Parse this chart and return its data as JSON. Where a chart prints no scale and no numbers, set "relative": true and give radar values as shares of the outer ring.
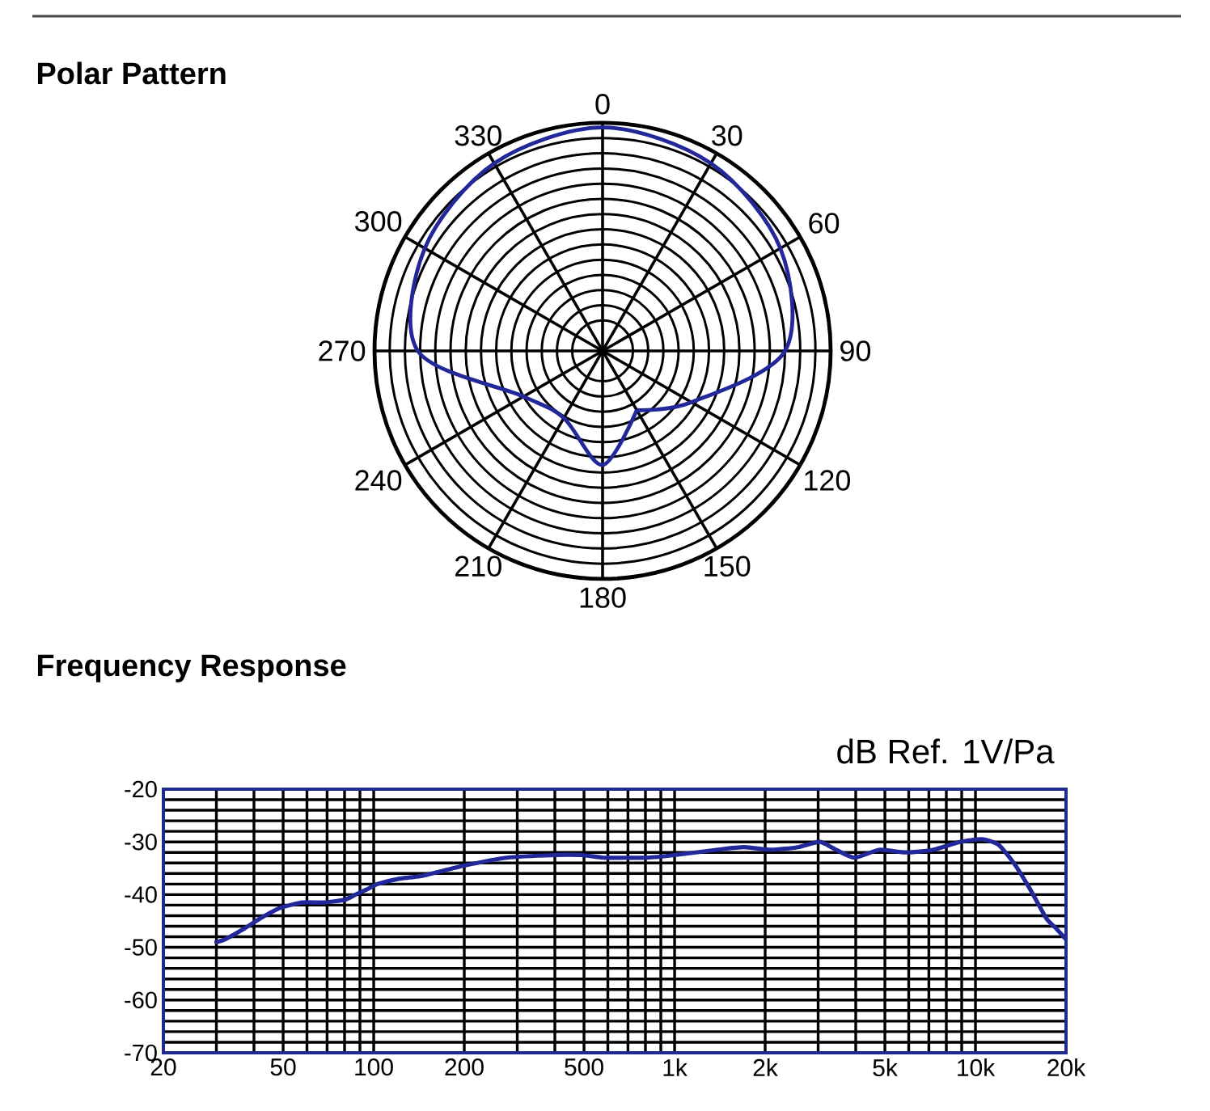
{
  "chart_data": [
    {
      "type": "radar",
      "title": "Polar Pattern",
      "categories": [
        "0",
        "30",
        "60",
        "90",
        "120",
        "150",
        "180",
        "210",
        "240",
        "270",
        "300",
        "330"
      ],
      "relative": true,
      "grid": true,
      "series": [
        {
          "color": "#22279a",
          "values": [
            0.98,
            0.95,
            0.9,
            0.8,
            0.45,
            0.3,
            0.5,
            0.34,
            0.4,
            0.81,
            0.9,
            0.95
          ]
        }
      ]
    },
    {
      "type": "line",
      "title": "Frequency Response",
      "ylabel": "dB Ref. 1V/Pa",
      "log": "x",
      "grid": true,
      "xlim": [
        20,
        20000
      ],
      "xticks": [
        20,
        50,
        100,
        200,
        500,
        {
          "value": 1000,
          "label": "1k"
        },
        {
          "value": 2000,
          "label": "2k"
        },
        {
          "value": 5000,
          "label": "5k"
        },
        {
          "value": 10000,
          "label": "10k"
        },
        {
          "value": 20000,
          "label": "20k"
        }
      ],
      "ylim": [
        -70,
        -20
      ],
      "yticks": [
        -70,
        -60,
        -50,
        -40,
        -30,
        -20
      ],
      "x": [
        30,
        32,
        37,
        42,
        49,
        58,
        68,
        80,
        87,
        95,
        103,
        121,
        143,
        200,
        277,
        400,
        490,
        580,
        690,
        810,
        1000,
        1380,
        1700,
        2100,
        2570,
        3040,
        3440,
        3970,
        4780,
        5870,
        7220,
        8870,
        10500,
        11900,
        13400,
        15200,
        17200,
        18600,
        20000
      ],
      "series": [
        {
          "color": "#22279a",
          "values": [
            -49,
            -48.5,
            -46.5,
            -44.5,
            -42.5,
            -41.5,
            -41.5,
            -41,
            -40,
            -39,
            -38,
            -37,
            -36.5,
            -34.5,
            -33,
            -32.5,
            -32.5,
            -33,
            -33,
            -33,
            -32.5,
            -31.5,
            -31,
            -31.5,
            -31,
            -30,
            -31.5,
            -33,
            -31.5,
            -32,
            -31.5,
            -30,
            -29.5,
            -30.5,
            -34,
            -39,
            -44.5,
            -46.5,
            -48.5
          ]
        }
      ]
    }
  ]
}
